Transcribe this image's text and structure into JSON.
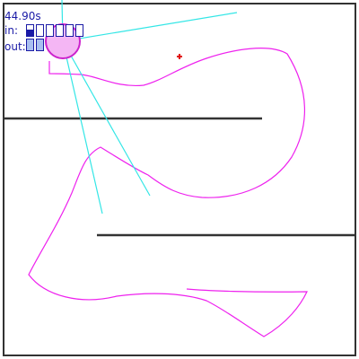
{
  "hud": {
    "timer": "44.90s",
    "in_label": "in:",
    "out_label": "out:",
    "in_levels": [
      0.6,
      0.0,
      0.0,
      0.0,
      0.0,
      0.0
    ],
    "out_levels": [
      1.0,
      1.0
    ]
  },
  "colors": {
    "walls": "#333333",
    "trail": "#ee22ee",
    "agent_fill": "#f4b6f4",
    "agent_stroke": "#cc22cc",
    "sensor_rays": "#33e6e6",
    "target": "#e01010",
    "hud_text": "#1a1aa6",
    "bar_fill": "#1a1aa6",
    "bar_fill_pale": "#a9bff0"
  },
  "icons": {
    "agent": "agent-circle-icon",
    "target": "target-cross-icon"
  }
}
